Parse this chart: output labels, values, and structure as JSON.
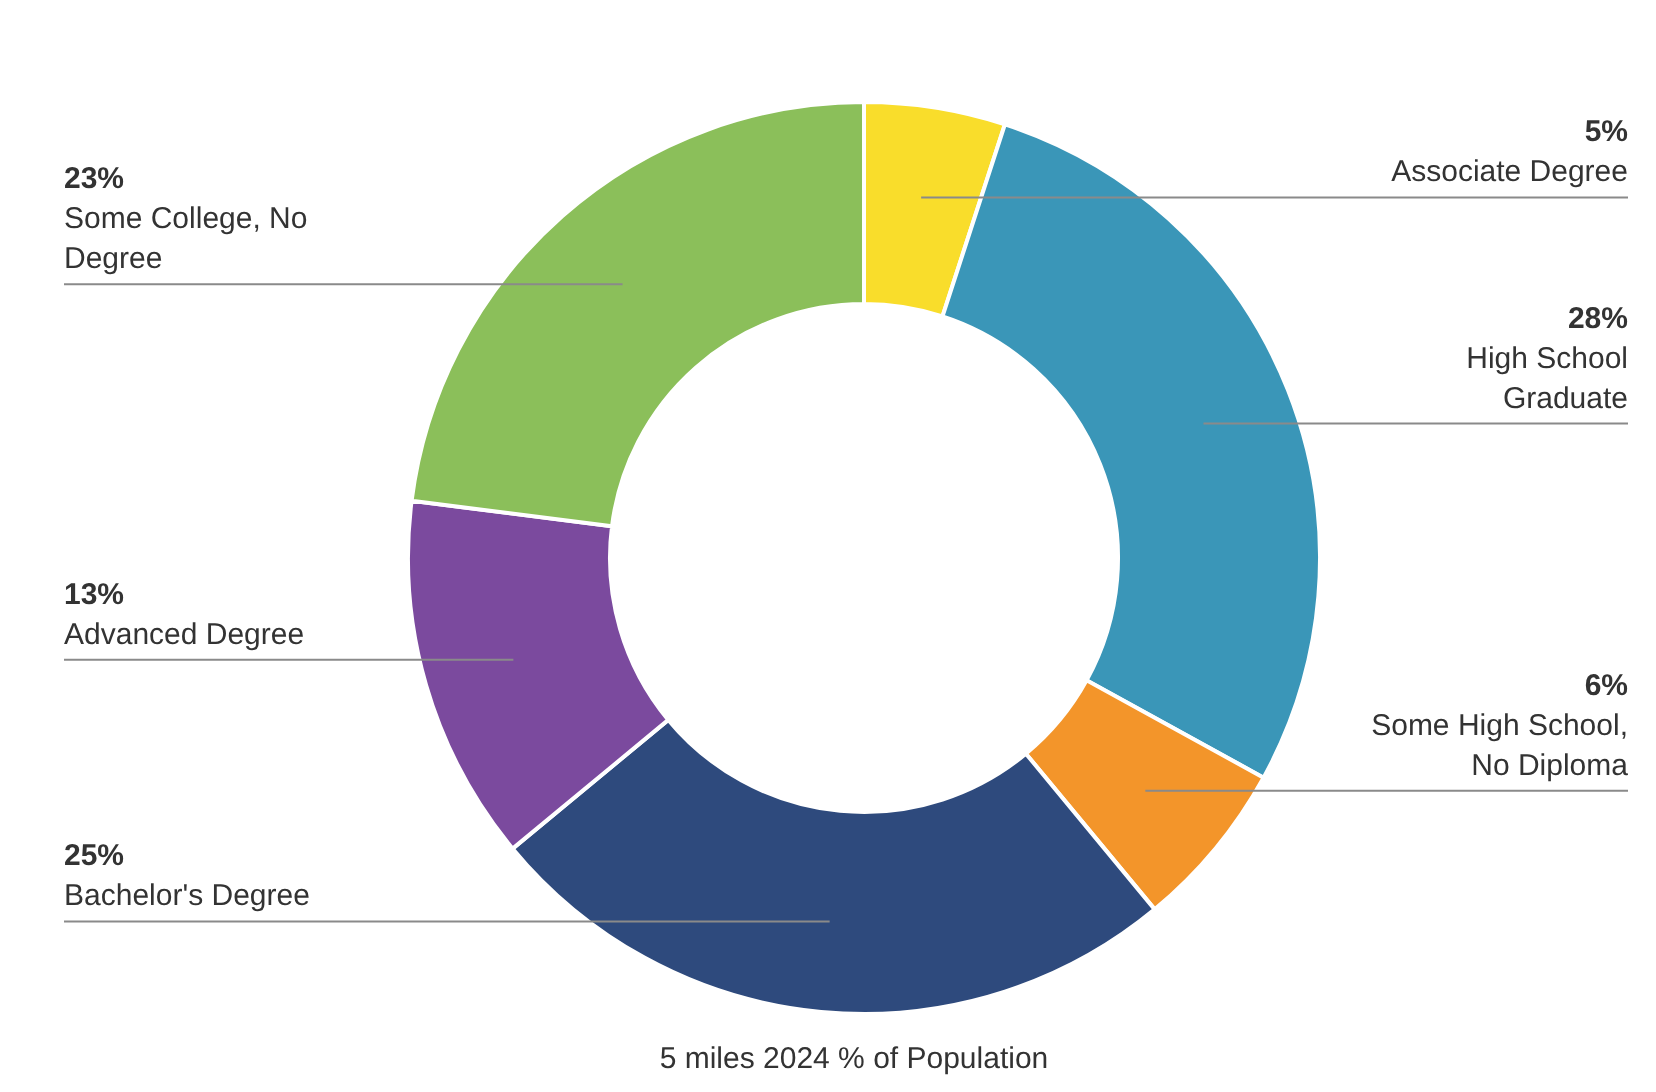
{
  "chart_data": {
    "type": "donut",
    "title": "5 miles 2024 % of Population",
    "categories": [
      "Associate Degree",
      "High School Graduate",
      "Some High School, No Diploma",
      "Bachelor's Degree",
      "Advanced Degree",
      "Some College, No Degree"
    ],
    "values": [
      5,
      28,
      6,
      25,
      13,
      23
    ],
    "value_labels": [
      "5%",
      "28%",
      "6%",
      "25%",
      "13%",
      "23%"
    ],
    "colors": [
      "#f9dd2b",
      "#3a96b8",
      "#f3952a",
      "#2e4a7d",
      "#7b4a9e",
      "#8bbf5a"
    ],
    "legend": false
  }
}
